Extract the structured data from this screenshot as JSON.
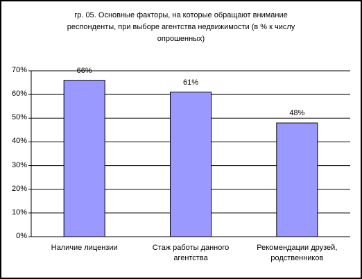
{
  "chart_data": {
    "type": "bar",
    "title": "гр. 05. Основные факторы, на которые обращают внимание респонденты, при выборе агентства недвижимости (в % к числу опрошенных)",
    "categories": [
      "Наличие лицензии",
      "Стаж работы данного агентства",
      "Рекомендации друзей, родственников"
    ],
    "values": [
      66,
      61,
      48
    ],
    "value_labels": [
      "66%",
      "61%",
      "48%"
    ],
    "color": "#9999ff",
    "ylim": [
      0,
      70
    ],
    "yticks": [
      {
        "value": 0,
        "label": "0%"
      },
      {
        "value": 10,
        "label": "10%"
      },
      {
        "value": 20,
        "label": "20%"
      },
      {
        "value": 30,
        "label": "30%"
      },
      {
        "value": 40,
        "label": "40%"
      },
      {
        "value": 50,
        "label": "50%"
      },
      {
        "value": 60,
        "label": "60%"
      },
      {
        "value": 70,
        "label": "70%"
      }
    ],
    "grid": true
  }
}
